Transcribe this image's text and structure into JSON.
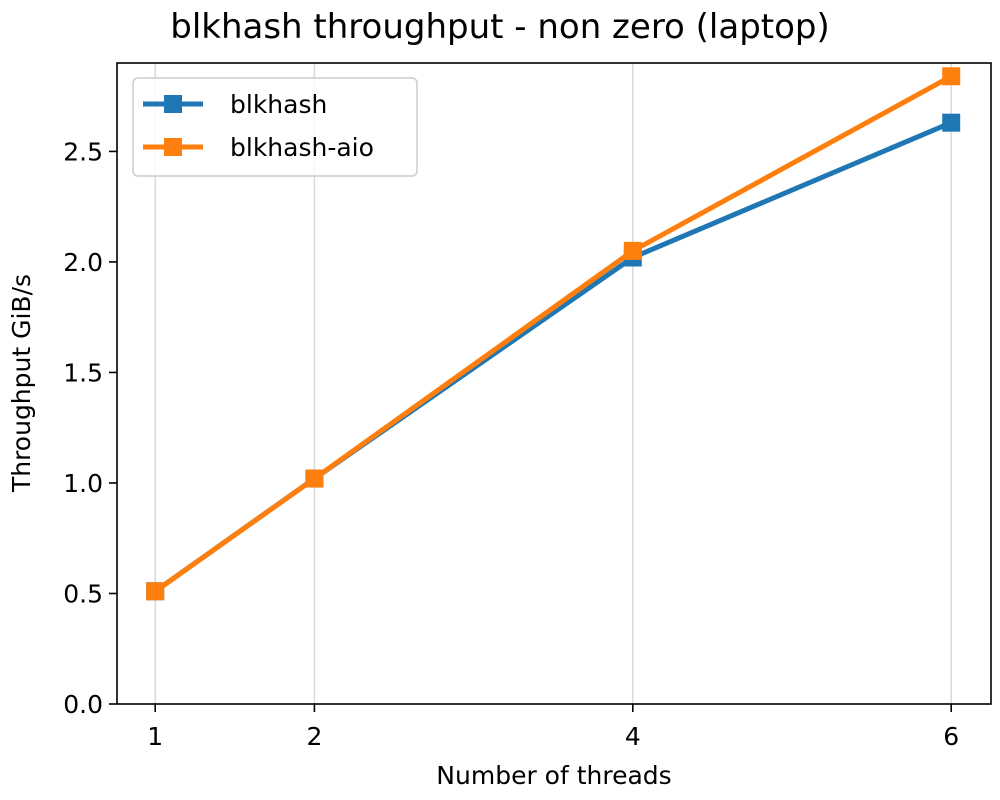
{
  "chart_data": {
    "type": "line",
    "title": "blkhash throughput - non zero (laptop)",
    "xlabel": "Number of threads",
    "ylabel": "Throughput GiB/s",
    "x": [
      1,
      2,
      4,
      6
    ],
    "xticks": [
      "1",
      "2",
      "4",
      "6"
    ],
    "xlim": [
      0.76,
      6.25
    ],
    "yticks": [
      "0.0",
      "0.5",
      "1.0",
      "1.5",
      "2.0",
      "2.5"
    ],
    "ylim": [
      0,
      2.9
    ],
    "grid": "vertical",
    "legend_position": "upper-left",
    "series": [
      {
        "name": "blkhash",
        "color": "#1f77b4",
        "marker": "square",
        "values": [
          0.51,
          1.02,
          2.02,
          2.63
        ]
      },
      {
        "name": "blkhash-aio",
        "color": "#ff7f0e",
        "marker": "square",
        "values": [
          0.51,
          1.02,
          2.05,
          2.84
        ]
      }
    ]
  }
}
